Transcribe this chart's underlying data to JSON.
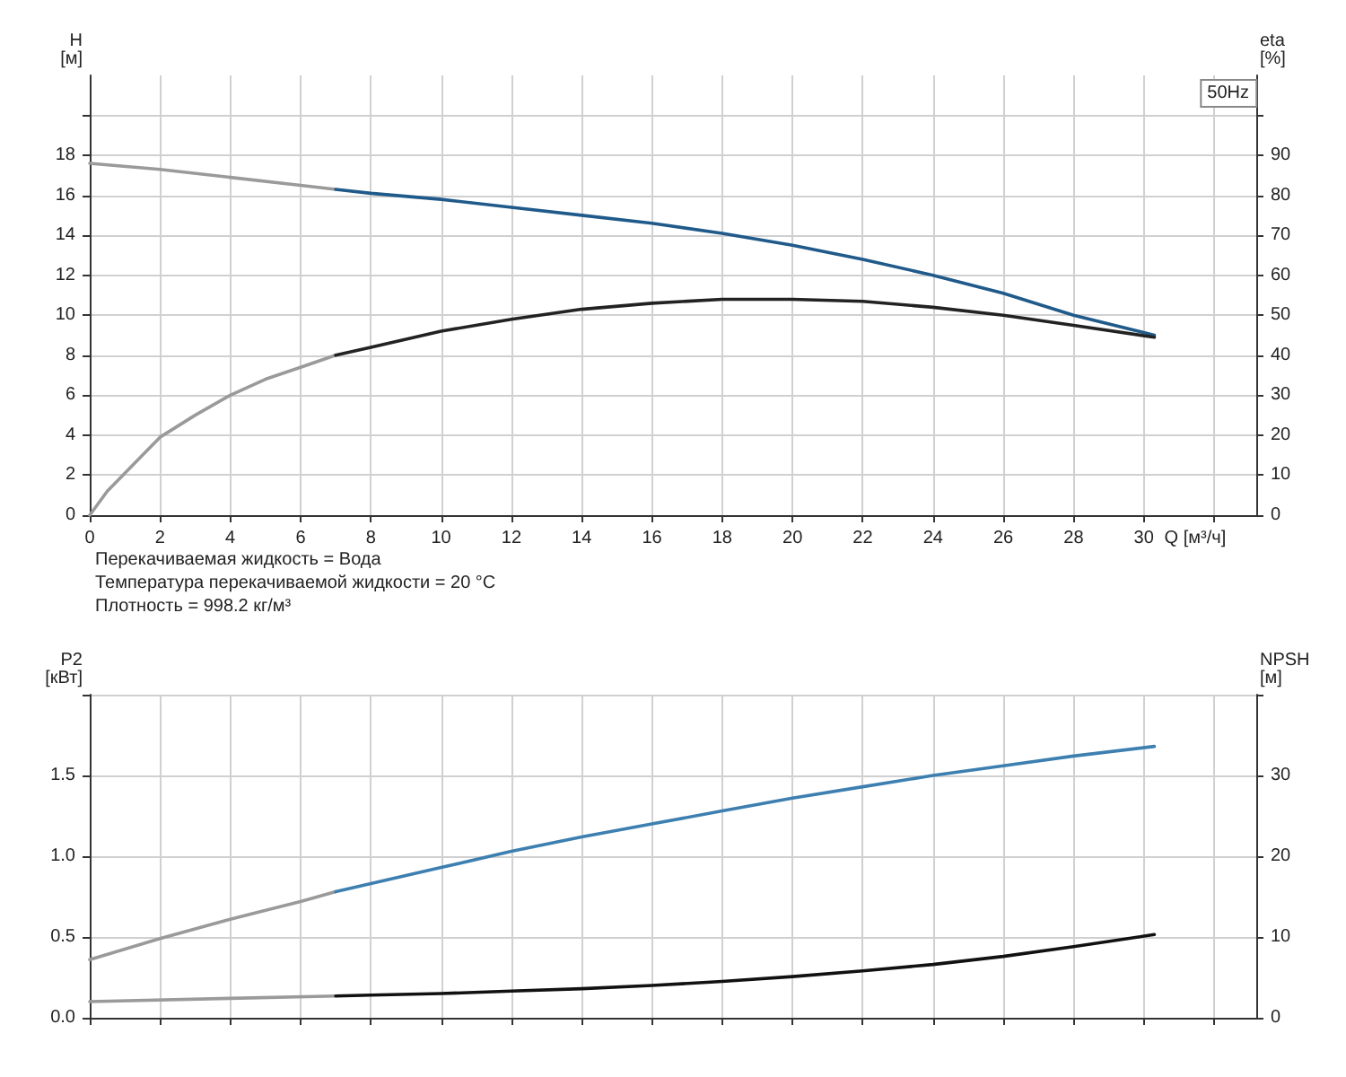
{
  "chart_data": [
    {
      "type": "line",
      "title": "50Hz",
      "ylabel": "H [м]",
      "y2label": "eta [%]",
      "xlabel": "Q [м³/ч]",
      "xlim": [
        0,
        33.2
      ],
      "xticks": [
        0,
        2,
        4,
        6,
        8,
        10,
        12,
        14,
        16,
        18,
        20,
        22,
        24,
        26,
        28,
        30,
        {
          "value": 32,
          "label": null
        }
      ],
      "ylim": [
        0,
        22
      ],
      "yticks": [
        0,
        2,
        4,
        6,
        8,
        10,
        12,
        14,
        16,
        18,
        {
          "value": 20,
          "label": null
        }
      ],
      "y2lim": [
        0,
        110
      ],
      "y2ticks": [
        0,
        10,
        20,
        30,
        40,
        50,
        60,
        70,
        80,
        90,
        {
          "value": 100,
          "label": null
        }
      ],
      "grid": true,
      "marker": "none",
      "line_style": "solid",
      "annotations": [
        "Перекачиваемая жидкость = Вода",
        "Температура перекачиваемой жидкости = 20 °C",
        "Плотность = 998.2 кг/м³"
      ],
      "series": [
        {
          "color": "#9a9a9a",
          "x": [
            0,
            2,
            4,
            6,
            7
          ],
          "values": [
            17.6,
            17.3,
            16.9,
            16.5,
            16.3
          ]
        },
        {
          "color": "#1f5a8a",
          "x": [
            7,
            8,
            10,
            12,
            14,
            16,
            18,
            20,
            22,
            24,
            26,
            28,
            30.3
          ],
          "values": [
            16.3,
            16.1,
            15.8,
            15.4,
            15.0,
            14.6,
            14.1,
            13.5,
            12.8,
            12.0,
            11.1,
            10.0,
            9.0
          ]
        },
        {
          "color": "#9a9a9a",
          "axis": "y2",
          "x": [
            0,
            0.5,
            1,
            2,
            3,
            4,
            5,
            6,
            7
          ],
          "values": [
            0,
            6,
            10.5,
            19.5,
            25,
            30,
            34,
            37,
            40
          ]
        },
        {
          "color": "#222222",
          "axis": "y2",
          "x": [
            7,
            8,
            10,
            12,
            14,
            16,
            18,
            20,
            22,
            24,
            26,
            28,
            30.3
          ],
          "values": [
            40,
            42,
            46,
            49,
            51.5,
            53,
            54,
            54,
            53.5,
            52,
            50,
            47.5,
            44.5
          ]
        }
      ]
    },
    {
      "type": "line",
      "ylabel": "P2 [кВт]",
      "y2label": "NPSH [м]",
      "tick_labels": "y",
      "xlim": [
        0,
        33.2
      ],
      "xticks": [
        0,
        2,
        4,
        6,
        8,
        10,
        12,
        14,
        16,
        18,
        20,
        22,
        24,
        26,
        28,
        30,
        32
      ],
      "ylim": [
        0,
        2
      ],
      "yticks": [
        {
          "value": 0,
          "label": "0.0"
        },
        0.5,
        {
          "value": 1,
          "label": "1.0"
        },
        1.5,
        {
          "value": 2,
          "label": null
        }
      ],
      "y2lim": [
        0,
        40
      ],
      "y2ticks": [
        0,
        10,
        20,
        30,
        {
          "value": 40,
          "label": null
        }
      ],
      "grid": true,
      "marker": "none",
      "line_style": "solid",
      "series": [
        {
          "color": "#9a9a9a",
          "x": [
            0,
            2,
            4,
            6,
            7
          ],
          "values": [
            0.36,
            0.49,
            0.61,
            0.72,
            0.78
          ]
        },
        {
          "color": "#3d7fb0",
          "x": [
            7,
            8,
            10,
            12,
            14,
            16,
            18,
            20,
            22,
            24,
            26,
            28,
            30.3
          ],
          "values": [
            0.78,
            0.83,
            0.93,
            1.03,
            1.12,
            1.2,
            1.28,
            1.36,
            1.43,
            1.5,
            1.56,
            1.62,
            1.68
          ]
        },
        {
          "color": "#9a9a9a",
          "axis": "y2",
          "x": [
            0,
            4,
            7
          ],
          "values": [
            2.0,
            2.4,
            2.7
          ]
        },
        {
          "color": "#111111",
          "axis": "y2",
          "x": [
            7,
            8,
            10,
            12,
            14,
            16,
            18,
            20,
            22,
            24,
            26,
            28,
            30.3
          ],
          "values": [
            2.7,
            2.8,
            3.0,
            3.3,
            3.6,
            4.0,
            4.5,
            5.1,
            5.8,
            6.6,
            7.6,
            8.8,
            10.3
          ]
        }
      ]
    }
  ]
}
